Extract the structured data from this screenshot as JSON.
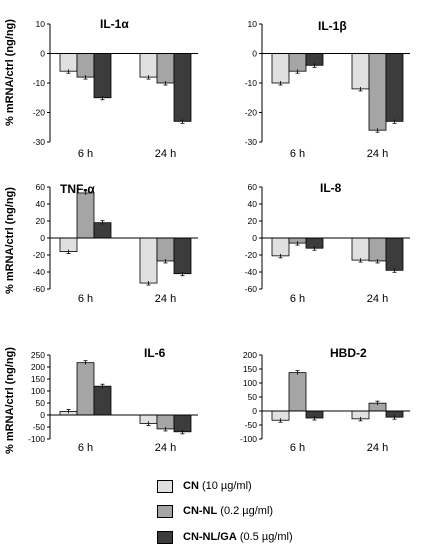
{
  "y_axis_label": "% mRNA/ctrl  (ng/ng)",
  "legend": [
    {
      "name": "CN",
      "conc": "(10 µg/ml)",
      "color": "#e0e0e0"
    },
    {
      "name": "CN-NL",
      "conc": "(0.2 µg/ml)",
      "color": "#a5a5a5"
    },
    {
      "name": "CN-NL/GA",
      "conc": "(0.5 µg/ml)",
      "color": "#3c3c3c"
    }
  ],
  "chart_data": [
    {
      "type": "bar",
      "title": "IL-1α",
      "categories": [
        "6 h",
        "24 h"
      ],
      "ylim": [
        -30,
        10
      ],
      "yticks": [
        10,
        0,
        -10,
        -20,
        -30
      ],
      "series": [
        {
          "name": "CN",
          "values": [
            -6,
            -8
          ]
        },
        {
          "name": "CN-NL",
          "values": [
            -8,
            -10
          ]
        },
        {
          "name": "CN-NL/GA",
          "values": [
            -15,
            -23
          ]
        }
      ]
    },
    {
      "type": "bar",
      "title": "IL-1β",
      "categories": [
        "6 h",
        "24 h"
      ],
      "ylim": [
        -30,
        10
      ],
      "yticks": [
        10,
        0,
        -10,
        -20,
        -30
      ],
      "series": [
        {
          "name": "CN",
          "values": [
            -10,
            -12
          ]
        },
        {
          "name": "CN-NL",
          "values": [
            -6,
            -26
          ]
        },
        {
          "name": "CN-NL/GA",
          "values": [
            -4,
            -23
          ]
        }
      ]
    },
    {
      "type": "bar",
      "title": "TNF-α",
      "categories": [
        "6 h",
        "24 h"
      ],
      "ylim": [
        -60,
        60
      ],
      "yticks": [
        60,
        40,
        20,
        0,
        -20,
        -40,
        -60
      ],
      "series": [
        {
          "name": "CN",
          "values": [
            -16,
            -53
          ]
        },
        {
          "name": "CN-NL",
          "values": [
            53,
            -27
          ]
        },
        {
          "name": "CN-NL/GA",
          "values": [
            18,
            -42
          ]
        }
      ]
    },
    {
      "type": "bar",
      "title": "IL-8",
      "categories": [
        "6 h",
        "24 h"
      ],
      "ylim": [
        -60,
        60
      ],
      "yticks": [
        60,
        40,
        20,
        0,
        -20,
        -40,
        -60
      ],
      "series": [
        {
          "name": "CN",
          "values": [
            -21,
            -26
          ]
        },
        {
          "name": "CN-NL",
          "values": [
            -6,
            -27
          ]
        },
        {
          "name": "CN-NL/GA",
          "values": [
            -12,
            -38
          ]
        }
      ]
    },
    {
      "type": "bar",
      "title": "IL-6",
      "categories": [
        "6 h",
        "24 h"
      ],
      "ylim": [
        -100,
        250
      ],
      "yticks": [
        250,
        200,
        150,
        100,
        50,
        0,
        -50,
        -100
      ],
      "series": [
        {
          "name": "CN",
          "values": [
            15,
            -35
          ]
        },
        {
          "name": "CN-NL",
          "values": [
            218,
            -58
          ]
        },
        {
          "name": "CN-NL/GA",
          "values": [
            120,
            -70
          ]
        }
      ]
    },
    {
      "type": "bar",
      "title": "HBD-2",
      "categories": [
        "6 h",
        "24 h"
      ],
      "ylim": [
        -100,
        200
      ],
      "yticks": [
        200,
        150,
        100,
        50,
        0,
        -50,
        -100
      ],
      "series": [
        {
          "name": "CN",
          "values": [
            -33,
            -28
          ]
        },
        {
          "name": "CN-NL",
          "values": [
            137,
            28
          ]
        },
        {
          "name": "CN-NL/GA",
          "values": [
            -25,
            -22
          ]
        }
      ]
    }
  ]
}
